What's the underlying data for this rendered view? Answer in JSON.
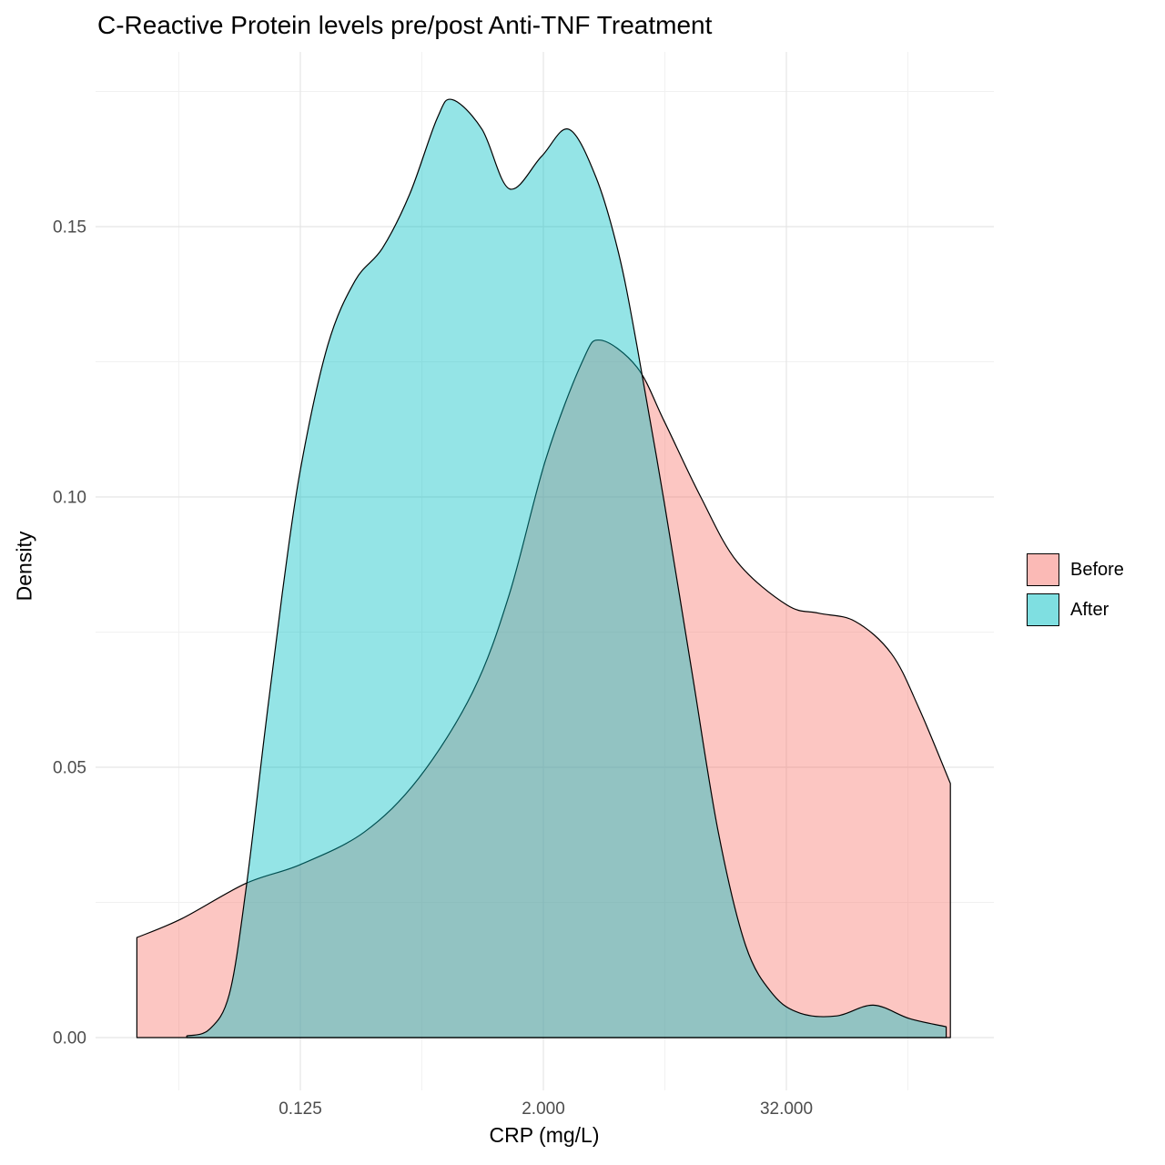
{
  "title": "C-Reactive Protein levels pre/post Anti-TNF Treatment",
  "axes": {
    "x_label": "CRP (mg/L)",
    "y_label": "Density"
  },
  "legend": {
    "items": [
      {
        "label": "Before",
        "color": "#F8766D"
      },
      {
        "label": "After",
        "color": "#00BFC4"
      }
    ]
  },
  "chart_data": {
    "type": "area",
    "subtype": "overlapping-density",
    "title": "C-Reactive Protein levels pre/post Anti-TNF Treatment",
    "xlabel": "CRP (mg/L)",
    "ylabel": "Density",
    "x_scale": "log2",
    "x_ticks": [
      {
        "value": 0.125,
        "label": "0.125"
      },
      {
        "value": 2,
        "label": "2.000"
      },
      {
        "value": 32,
        "label": "32.000"
      }
    ],
    "x_minor_log2": [
      -5,
      -1,
      3,
      7
    ],
    "y_ticks": [
      {
        "value": 0.0,
        "label": "0.00"
      },
      {
        "value": 0.05,
        "label": "0.05"
      },
      {
        "value": 0.1,
        "label": "0.10"
      },
      {
        "value": 0.15,
        "label": "0.15"
      }
    ],
    "y_minor": [
      0.025,
      0.075,
      0.125,
      0.175
    ],
    "ylim": [
      0,
      0.18
    ],
    "x_log2_lim": [
      -6.4,
      8.4
    ],
    "grid": {
      "major_color": "#E5E5E5",
      "minor_color": "#F1F1F1"
    },
    "legend_position": "right",
    "fill_opacity": 0.42,
    "stroke_color": "#000000",
    "series": [
      {
        "name": "Before",
        "color": "#F8766D",
        "x_log2": [
          -5.69,
          -4.95,
          -3.9,
          -3.0,
          -1.95,
          -1.05,
          -0.16,
          0.44,
          1.04,
          1.64,
          1.94,
          2.54,
          2.99,
          3.59,
          4.19,
          5.01,
          5.53,
          6.13,
          6.73,
          7.18,
          7.7
        ],
        "density": [
          0.0185,
          0.022,
          0.0285,
          0.032,
          0.038,
          0.048,
          0.064,
          0.082,
          0.107,
          0.125,
          0.129,
          0.124,
          0.114,
          0.1,
          0.088,
          0.08,
          0.0785,
          0.077,
          0.071,
          0.061,
          0.047
        ]
      },
      {
        "name": "After",
        "color": "#00BFC4",
        "x_log2": [
          -4.87,
          -4.5,
          -4.17,
          -3.9,
          -3.6,
          -3.3,
          -3.0,
          -2.55,
          -2.1,
          -1.65,
          -1.2,
          -0.75,
          -0.5,
          -0.01,
          0.44,
          0.97,
          1.42,
          1.87,
          2.24,
          2.54,
          2.99,
          3.44,
          3.88,
          4.33,
          4.78,
          5.23,
          5.83,
          6.43,
          7.03,
          7.63
        ],
        "density": [
          0.0003,
          0.0015,
          0.008,
          0.027,
          0.055,
          0.082,
          0.105,
          0.128,
          0.14,
          0.146,
          0.156,
          0.17,
          0.1735,
          0.168,
          0.157,
          0.163,
          0.168,
          0.159,
          0.145,
          0.128,
          0.099,
          0.068,
          0.038,
          0.017,
          0.008,
          0.0045,
          0.004,
          0.006,
          0.0035,
          0.002
        ]
      }
    ]
  }
}
